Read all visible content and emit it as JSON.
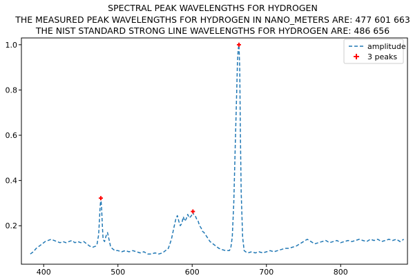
{
  "chart_data": {
    "type": "line",
    "title": "SPECTRAL PEAK WAVELENGTHS FOR HYDROGEN",
    "subtitle_lines": [
      "THE MEASURED PEAK WAVELENGTHS FOR HYDROGEN IN NANO_METERS ARE: 477 601 663",
      "THE NIST STANDARD STRONG LINE WAVELENGTHS FOR HYDROGEN ARE: 486 656"
    ],
    "xlabel": "",
    "ylabel": "",
    "xlim": [
      370,
      890
    ],
    "ylim": [
      0.03,
      1.03
    ],
    "x_ticks": [
      400,
      500,
      600,
      700,
      800
    ],
    "y_ticks": [
      0.2,
      0.4,
      0.6,
      0.8,
      1.0
    ],
    "x_tick_labels": [
      "400",
      "500",
      "600",
      "700",
      "800"
    ],
    "y_tick_labels": [
      "0.2",
      "0.4",
      "0.6",
      "0.8",
      "1.0"
    ],
    "grid": false,
    "legend_position": "top-right",
    "series": [
      {
        "name": "amplitude",
        "style": "dashed",
        "color": "#1f77b4",
        "x": [
          382,
          386,
          390,
          394,
          398,
          402,
          406,
          410,
          414,
          418,
          422,
          426,
          430,
          434,
          438,
          442,
          446,
          450,
          454,
          458,
          462,
          466,
          470,
          472,
          474,
          475,
          476,
          477,
          478,
          479,
          480,
          482,
          484,
          486,
          488,
          490,
          492,
          494,
          496,
          500,
          505,
          510,
          515,
          520,
          525,
          530,
          535,
          540,
          545,
          550,
          555,
          560,
          564,
          568,
          570,
          572,
          574,
          576,
          578,
          580,
          582,
          584,
          586,
          588,
          590,
          592,
          594,
          596,
          598,
          600,
          601,
          602,
          604,
          606,
          608,
          610,
          612,
          614,
          616,
          618,
          620,
          622,
          624,
          626,
          628,
          630,
          632,
          634,
          636,
          640,
          645,
          650,
          652,
          654,
          656,
          658,
          660,
          661,
          662,
          663,
          664,
          665,
          666,
          668,
          670,
          672,
          675,
          680,
          685,
          690,
          695,
          700,
          705,
          710,
          715,
          720,
          725,
          730,
          735,
          740,
          745,
          750,
          755,
          760,
          765,
          770,
          775,
          780,
          785,
          790,
          795,
          800,
          805,
          810,
          815,
          820,
          825,
          830,
          835,
          840,
          845,
          850,
          855,
          860,
          865,
          870,
          875,
          880,
          885
        ],
        "y": [
          0.075,
          0.085,
          0.1,
          0.11,
          0.12,
          0.13,
          0.135,
          0.14,
          0.135,
          0.13,
          0.125,
          0.13,
          0.125,
          0.13,
          0.135,
          0.125,
          0.13,
          0.125,
          0.13,
          0.12,
          0.11,
          0.105,
          0.11,
          0.12,
          0.16,
          0.22,
          0.28,
          0.322,
          0.28,
          0.2,
          0.14,
          0.13,
          0.155,
          0.17,
          0.14,
          0.11,
          0.1,
          0.095,
          0.09,
          0.09,
          0.085,
          0.09,
          0.085,
          0.09,
          0.085,
          0.08,
          0.085,
          0.075,
          0.075,
          0.08,
          0.075,
          0.08,
          0.09,
          0.1,
          0.12,
          0.14,
          0.17,
          0.2,
          0.23,
          0.245,
          0.22,
          0.2,
          0.21,
          0.24,
          0.22,
          0.23,
          0.25,
          0.235,
          0.24,
          0.25,
          0.26,
          0.25,
          0.245,
          0.23,
          0.22,
          0.2,
          0.19,
          0.175,
          0.17,
          0.16,
          0.15,
          0.14,
          0.13,
          0.125,
          0.12,
          0.115,
          0.11,
          0.105,
          0.1,
          0.095,
          0.09,
          0.09,
          0.1,
          0.15,
          0.3,
          0.55,
          0.8,
          0.92,
          0.98,
          1.0,
          0.9,
          0.6,
          0.35,
          0.15,
          0.09,
          0.085,
          0.08,
          0.085,
          0.08,
          0.085,
          0.08,
          0.085,
          0.09,
          0.085,
          0.09,
          0.095,
          0.1,
          0.1,
          0.105,
          0.11,
          0.12,
          0.13,
          0.14,
          0.13,
          0.12,
          0.125,
          0.13,
          0.135,
          0.125,
          0.13,
          0.135,
          0.125,
          0.13,
          0.135,
          0.13,
          0.135,
          0.14,
          0.135,
          0.13,
          0.14,
          0.135,
          0.14,
          0.13,
          0.135,
          0.14,
          0.135,
          0.14,
          0.13,
          0.14
        ]
      },
      {
        "name": "3 peaks",
        "style": "markers",
        "marker": "plus",
        "color": "#ff0000",
        "x": [
          477,
          601,
          663
        ],
        "y": [
          0.322,
          0.263,
          1.0
        ]
      }
    ]
  }
}
